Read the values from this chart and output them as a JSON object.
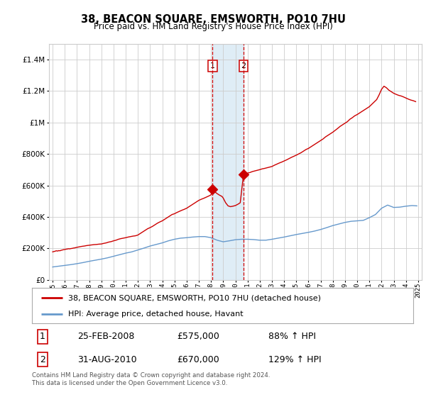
{
  "title": "38, BEACON SQUARE, EMSWORTH, PO10 7HU",
  "subtitle": "Price paid vs. HM Land Registry's House Price Index (HPI)",
  "legend_label_red": "38, BEACON SQUARE, EMSWORTH, PO10 7HU (detached house)",
  "legend_label_blue": "HPI: Average price, detached house, Havant",
  "footnote": "Contains HM Land Registry data © Crown copyright and database right 2024.\nThis data is licensed under the Open Government Licence v3.0.",
  "transaction1_label": "1",
  "transaction1_date": "25-FEB-2008",
  "transaction1_price": "£575,000",
  "transaction1_hpi": "88% ↑ HPI",
  "transaction1_year": 2008.12,
  "transaction2_label": "2",
  "transaction2_date": "31-AUG-2010",
  "transaction2_price": "£670,000",
  "transaction2_hpi": "129% ↑ HPI",
  "transaction2_year": 2010.67,
  "red_color": "#cc0000",
  "blue_color": "#6699cc",
  "shade_color": "#daeaf5",
  "vline_color": "#cc0000",
  "grid_color": "#cccccc",
  "background_color": "#ffffff",
  "ylim": [
    0,
    1500000
  ],
  "xlim": [
    1994.7,
    2025.3
  ],
  "red_x": [
    1995.0,
    1995.1,
    1995.2,
    1995.3,
    1995.4,
    1995.5,
    1995.6,
    1995.7,
    1995.8,
    1995.9,
    1996.0,
    1996.1,
    1996.2,
    1996.3,
    1996.4,
    1996.5,
    1996.6,
    1996.7,
    1996.8,
    1996.9,
    1997.0,
    1997.2,
    1997.4,
    1997.6,
    1997.8,
    1998.0,
    1998.2,
    1998.4,
    1998.6,
    1998.8,
    1999.0,
    1999.2,
    1999.4,
    1999.6,
    1999.8,
    2000.0,
    2000.2,
    2000.4,
    2000.6,
    2000.8,
    2001.0,
    2001.2,
    2001.4,
    2001.6,
    2001.8,
    2002.0,
    2002.2,
    2002.4,
    2002.6,
    2002.8,
    2003.0,
    2003.2,
    2003.4,
    2003.6,
    2003.8,
    2004.0,
    2004.2,
    2004.4,
    2004.6,
    2004.8,
    2005.0,
    2005.2,
    2005.4,
    2005.6,
    2005.8,
    2006.0,
    2006.2,
    2006.4,
    2006.6,
    2006.8,
    2007.0,
    2007.2,
    2007.4,
    2007.6,
    2007.8,
    2008.0,
    2008.12,
    2008.3,
    2008.5,
    2008.7,
    2008.9,
    2009.0,
    2009.2,
    2009.4,
    2009.6,
    2009.8,
    2010.0,
    2010.2,
    2010.4,
    2010.67,
    2010.8,
    2011.0,
    2011.2,
    2011.4,
    2011.6,
    2011.8,
    2012.0,
    2012.2,
    2012.4,
    2012.6,
    2012.8,
    2013.0,
    2013.2,
    2013.4,
    2013.6,
    2013.8,
    2014.0,
    2014.2,
    2014.4,
    2014.6,
    2014.8,
    2015.0,
    2015.2,
    2015.4,
    2015.6,
    2015.8,
    2016.0,
    2016.2,
    2016.4,
    2016.6,
    2016.8,
    2017.0,
    2017.2,
    2017.4,
    2017.6,
    2017.8,
    2018.0,
    2018.2,
    2018.4,
    2018.6,
    2018.8,
    2019.0,
    2019.2,
    2019.4,
    2019.6,
    2019.8,
    2020.0,
    2020.2,
    2020.4,
    2020.6,
    2020.8,
    2021.0,
    2021.2,
    2021.4,
    2021.6,
    2021.8,
    2022.0,
    2022.2,
    2022.4,
    2022.6,
    2022.8,
    2023.0,
    2023.2,
    2023.4,
    2023.6,
    2023.8,
    2024.0,
    2024.2,
    2024.4,
    2024.6,
    2024.8
  ],
  "red_y": [
    178000,
    180000,
    182000,
    185000,
    183000,
    186000,
    185000,
    188000,
    190000,
    192000,
    193000,
    195000,
    196000,
    198000,
    197000,
    199000,
    200000,
    202000,
    203000,
    205000,
    207000,
    210000,
    213000,
    215000,
    218000,
    220000,
    222000,
    224000,
    225000,
    227000,
    228000,
    232000,
    235000,
    240000,
    243000,
    248000,
    252000,
    258000,
    262000,
    265000,
    268000,
    272000,
    275000,
    278000,
    280000,
    285000,
    295000,
    305000,
    315000,
    325000,
    332000,
    340000,
    350000,
    360000,
    368000,
    375000,
    385000,
    395000,
    405000,
    415000,
    420000,
    428000,
    435000,
    442000,
    448000,
    455000,
    465000,
    475000,
    485000,
    495000,
    505000,
    512000,
    518000,
    525000,
    532000,
    540000,
    575000,
    560000,
    548000,
    538000,
    530000,
    520000,
    490000,
    470000,
    465000,
    468000,
    472000,
    480000,
    490000,
    670000,
    672000,
    678000,
    682000,
    688000,
    692000,
    696000,
    700000,
    705000,
    708000,
    712000,
    716000,
    720000,
    728000,
    735000,
    742000,
    748000,
    755000,
    762000,
    770000,
    778000,
    785000,
    792000,
    800000,
    808000,
    818000,
    828000,
    835000,
    845000,
    855000,
    865000,
    875000,
    885000,
    895000,
    908000,
    918000,
    928000,
    938000,
    950000,
    962000,
    975000,
    985000,
    995000,
    1005000,
    1020000,
    1030000,
    1042000,
    1050000,
    1060000,
    1070000,
    1080000,
    1090000,
    1100000,
    1115000,
    1130000,
    1145000,
    1175000,
    1210000,
    1230000,
    1220000,
    1205000,
    1195000,
    1185000,
    1178000,
    1172000,
    1168000,
    1162000,
    1155000,
    1148000,
    1142000,
    1138000,
    1132000
  ],
  "blue_x": [
    1995.0,
    1995.5,
    1996.0,
    1996.5,
    1997.0,
    1997.5,
    1998.0,
    1998.5,
    1999.0,
    1999.5,
    2000.0,
    2000.5,
    2001.0,
    2001.5,
    2002.0,
    2002.5,
    2003.0,
    2003.5,
    2004.0,
    2004.5,
    2005.0,
    2005.5,
    2006.0,
    2006.5,
    2007.0,
    2007.5,
    2008.0,
    2008.5,
    2009.0,
    2009.5,
    2010.0,
    2010.5,
    2011.0,
    2011.5,
    2012.0,
    2012.5,
    2013.0,
    2013.5,
    2014.0,
    2014.5,
    2015.0,
    2015.5,
    2016.0,
    2016.5,
    2017.0,
    2017.5,
    2018.0,
    2018.5,
    2019.0,
    2019.5,
    2020.0,
    2020.5,
    2021.0,
    2021.5,
    2022.0,
    2022.5,
    2023.0,
    2023.5,
    2024.0,
    2024.5,
    2024.9
  ],
  "blue_y": [
    82000,
    87000,
    92000,
    97000,
    103000,
    110000,
    118000,
    125000,
    132000,
    140000,
    150000,
    160000,
    170000,
    178000,
    190000,
    202000,
    215000,
    225000,
    235000,
    248000,
    258000,
    265000,
    268000,
    272000,
    275000,
    275000,
    268000,
    252000,
    242000,
    248000,
    255000,
    258000,
    258000,
    256000,
    252000,
    252000,
    258000,
    265000,
    272000,
    280000,
    288000,
    295000,
    302000,
    310000,
    320000,
    332000,
    345000,
    355000,
    365000,
    372000,
    375000,
    378000,
    395000,
    415000,
    455000,
    475000,
    460000,
    462000,
    468000,
    472000,
    470000
  ]
}
